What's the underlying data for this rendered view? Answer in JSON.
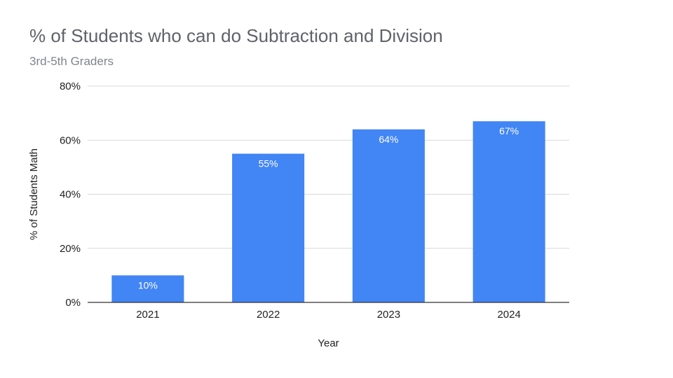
{
  "chart_data": {
    "type": "bar",
    "title": "% of Students who can do Subtraction and Division",
    "subtitle": "3rd-5th Graders",
    "categories": [
      "2021",
      "2022",
      "2023",
      "2024"
    ],
    "values": [
      10,
      55,
      64,
      67
    ],
    "data_labels": [
      "10%",
      "55%",
      "64%",
      "67%"
    ],
    "xlabel": "Year",
    "ylabel": "% of Students Math",
    "ylim": [
      0,
      80
    ],
    "yticks": [
      0,
      20,
      40,
      60,
      80
    ],
    "ytick_labels": [
      "0%",
      "20%",
      "40%",
      "60%",
      "80%"
    ],
    "grid": true,
    "bar_color": "#4285f4",
    "legend": "none"
  }
}
